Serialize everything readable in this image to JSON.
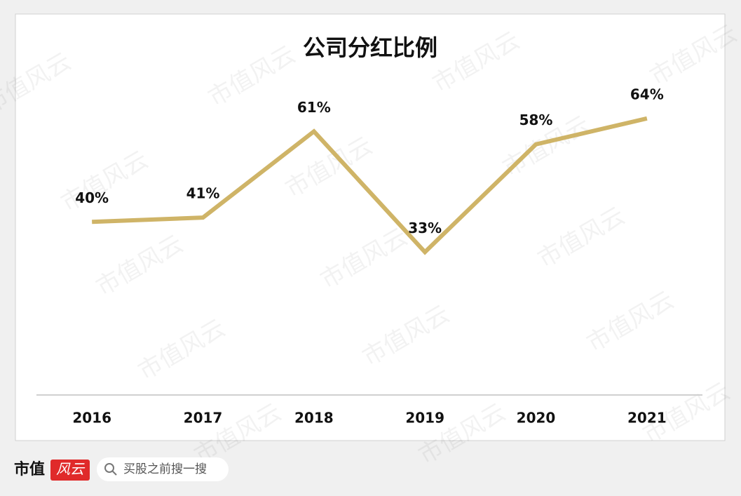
{
  "chart_data": {
    "type": "line",
    "title": "公司分红比例",
    "categories": [
      "2016",
      "2017",
      "2018",
      "2019",
      "2020",
      "2021"
    ],
    "values": [
      40,
      41,
      61,
      33,
      58,
      64
    ],
    "value_labels": [
      "40%",
      "41%",
      "61%",
      "33%",
      "58%",
      "64%"
    ],
    "color": "#cfb467",
    "ylim": [
      0,
      70
    ]
  },
  "watermark": "市值风云",
  "footer": {
    "brand": "市值",
    "logo": "风云",
    "search": "买股之前搜一搜"
  }
}
